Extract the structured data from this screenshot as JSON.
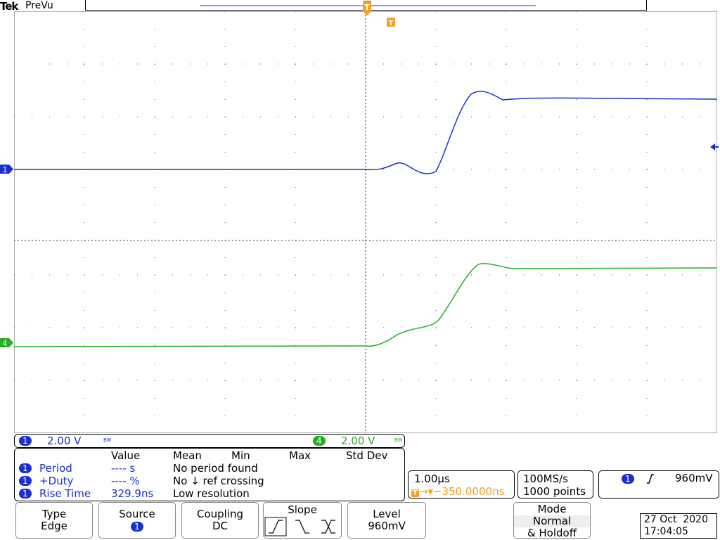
{
  "header": {
    "brand": "Tek",
    "status": "PreVu"
  },
  "channels": {
    "ch1": {
      "num": "1",
      "color": "#1a2fd0",
      "scale": "2.00 V",
      "bw": "BW"
    },
    "ch4": {
      "num": "4",
      "color": "#22b022",
      "scale": "2.00 V",
      "bw": "BW"
    }
  },
  "trigger_marker": "T",
  "measurements": {
    "headers": [
      "Value",
      "Mean",
      "Min",
      "Max",
      "Std Dev"
    ],
    "rows": [
      {
        "ch": "1",
        "name": "Period",
        "value": "---- s",
        "note": "No period found"
      },
      {
        "ch": "1",
        "name": "+Duty",
        "value": "---- %",
        "note": "No ↓ ref crossing"
      },
      {
        "ch": "1",
        "name": "Rise Time",
        "value": "329.9ns",
        "note": "Low resolution"
      }
    ]
  },
  "timebase": {
    "scale": "1.00µs",
    "delay": "→▾−350.0000ns"
  },
  "acquisition": {
    "rate": "100MS/s",
    "points": "1000 points"
  },
  "trigger_readout": {
    "ch": "1",
    "level": "960mV"
  },
  "menu": {
    "type": {
      "label": "Type",
      "value": "Edge"
    },
    "source": {
      "label": "Source",
      "value": "1"
    },
    "coupling": {
      "label": "Coupling",
      "value": "DC"
    },
    "slope": {
      "label": "Slope"
    },
    "level": {
      "label": "Level",
      "value": "960mV"
    },
    "mode": {
      "label": "Mode",
      "value1": "Normal",
      "value2": "& Holdoff"
    }
  },
  "datetime": {
    "date": "27 Oct  2020",
    "time": "17:04:05"
  },
  "colors": {
    "ch1": "#1a2fd0",
    "ch4": "#22b022",
    "trigger": "#f5a11a"
  }
}
